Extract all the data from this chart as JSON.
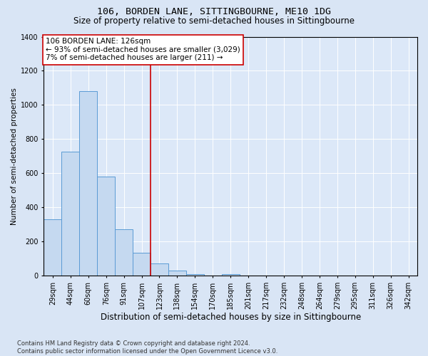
{
  "title": "106, BORDEN LANE, SITTINGBOURNE, ME10 1DG",
  "subtitle": "Size of property relative to semi-detached houses in Sittingbourne",
  "xlabel": "Distribution of semi-detached houses by size in Sittingbourne",
  "ylabel": "Number of semi-detached properties",
  "categories": [
    "29sqm",
    "44sqm",
    "60sqm",
    "76sqm",
    "91sqm",
    "107sqm",
    "123sqm",
    "138sqm",
    "154sqm",
    "170sqm",
    "185sqm",
    "201sqm",
    "217sqm",
    "232sqm",
    "248sqm",
    "264sqm",
    "279sqm",
    "295sqm",
    "311sqm",
    "326sqm",
    "342sqm"
  ],
  "values": [
    330,
    725,
    1080,
    580,
    270,
    135,
    70,
    30,
    10,
    0,
    10,
    0,
    0,
    0,
    0,
    0,
    0,
    0,
    0,
    0,
    0
  ],
  "bar_color": "#c5d9f0",
  "bar_edge_color": "#5b9bd5",
  "vline_x": 5.5,
  "vline_color": "#cc0000",
  "annotation_line1": "106 BORDEN LANE: 126sqm",
  "annotation_line2": "← 93% of semi-detached houses are smaller (3,029)",
  "annotation_line3": "7% of semi-detached houses are larger (211) →",
  "annotation_box_facecolor": "#ffffff",
  "annotation_box_edgecolor": "#cc0000",
  "ylim": [
    0,
    1400
  ],
  "yticks": [
    0,
    200,
    400,
    600,
    800,
    1000,
    1200,
    1400
  ],
  "footer_line1": "Contains HM Land Registry data © Crown copyright and database right 2024.",
  "footer_line2": "Contains public sector information licensed under the Open Government Licence v3.0.",
  "bg_color": "#d9e5f5",
  "plot_bg_color": "#dce8f8",
  "grid_color": "#ffffff",
  "title_fontsize": 9.5,
  "subtitle_fontsize": 8.5,
  "ylabel_fontsize": 7.5,
  "xlabel_fontsize": 8.5,
  "tick_fontsize": 7,
  "annotation_fontsize": 7.5,
  "footer_fontsize": 6
}
